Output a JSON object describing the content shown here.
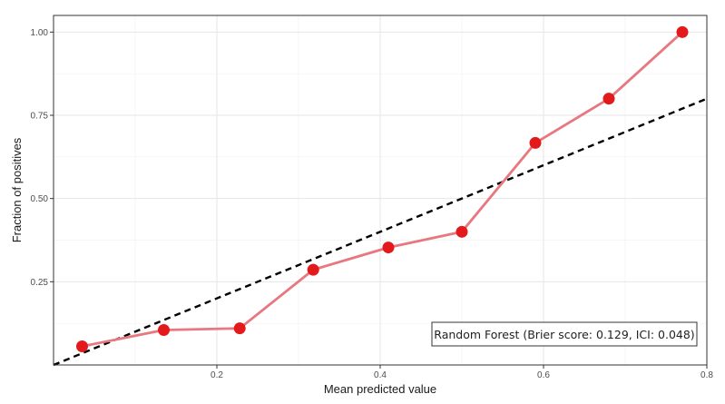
{
  "chart_data": {
    "type": "line",
    "xlabel": "Mean predicted value",
    "ylabel": "Fraction of positives",
    "xlim": [
      0.0,
      0.8
    ],
    "ylim": [
      0.0,
      1.05
    ],
    "x_ticks": [
      0.2,
      0.4,
      0.6,
      0.8
    ],
    "x_tick_labels": [
      "0.2",
      "0.4",
      "0.6",
      "0.8"
    ],
    "y_ticks": [
      0.25,
      0.5,
      0.75,
      1.0
    ],
    "y_tick_labels": [
      "0.25",
      "0.50",
      "0.75",
      "1.00"
    ],
    "grid": true,
    "legend_position": "bottom-right",
    "series": [
      {
        "name": "Random Forest (Brier score: 0.129, ICI: 0.048)",
        "color": "#e8777f",
        "marker_color": "#e31a1c",
        "x": [
          0.035,
          0.135,
          0.228,
          0.318,
          0.41,
          0.5,
          0.59,
          0.68,
          0.77
        ],
        "y": [
          0.056,
          0.105,
          0.11,
          0.286,
          0.353,
          0.4,
          0.667,
          0.8,
          1.0
        ]
      }
    ],
    "reference_line": {
      "style": "dashed",
      "color": "#000000",
      "x": [
        0.0,
        0.8
      ],
      "y": [
        0.0,
        0.8
      ]
    }
  }
}
